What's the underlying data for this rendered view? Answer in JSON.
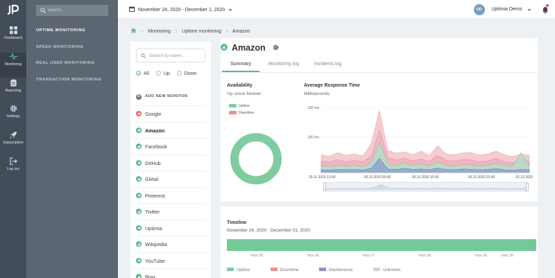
{
  "app": {
    "logo": "JP"
  },
  "nav": [
    {
      "label": "Dashboard",
      "icon": "dashboard-icon"
    },
    {
      "label": "Monitoring",
      "icon": "pulse-icon"
    },
    {
      "label": "Reporting",
      "icon": "clipboard-icon"
    },
    {
      "label": "Settings",
      "icon": "gear-icon"
    },
    {
      "label": "Subscription",
      "icon": "rocket-icon"
    },
    {
      "label": "Log out",
      "icon": "logout-icon"
    }
  ],
  "sidebar": {
    "search_placeholder": "Search...",
    "items": [
      "UPTIME MONITORING",
      "SPEED MONITORING",
      "REAL USER MONITORING",
      "TRANSACTION MONITORING"
    ]
  },
  "topbar": {
    "date_range": "November 24, 2020 - December 1, 2020",
    "user_initials": "UD",
    "user_name": "Uptimia Demo"
  },
  "breadcrumb": [
    "Monitoring",
    "Uptime monitoring",
    "Amazon"
  ],
  "monitor_list": {
    "search_placeholder": "Search by name...",
    "filters": [
      "All",
      "Up",
      "Down"
    ],
    "selected_filter": "All",
    "add_label": "ADD NEW MONITOR",
    "monitors": [
      {
        "name": "Google",
        "status": "down"
      },
      {
        "name": "Amazon",
        "status": "up",
        "selected": true
      },
      {
        "name": "Facebook",
        "status": "up"
      },
      {
        "name": "GitHub",
        "status": "up"
      },
      {
        "name": "GMail",
        "status": "up"
      },
      {
        "name": "Pinterest",
        "status": "up"
      },
      {
        "name": "Twitter",
        "status": "up"
      },
      {
        "name": "Uptimia",
        "status": "up"
      },
      {
        "name": "Wikipedia",
        "status": "up"
      },
      {
        "name": "YouTube",
        "status": "up"
      },
      {
        "name": "Bing",
        "status": "up"
      }
    ]
  },
  "detail": {
    "title": "Amazon",
    "tabs": [
      "Summary",
      "Monitoring log",
      "Incidents log"
    ],
    "active_tab": "Summary",
    "availability": {
      "title": "Availability",
      "subtitle": "Up since forever",
      "legend": [
        "Uptime",
        "Downtime"
      ]
    },
    "response": {
      "title": "Average Response Time",
      "subtitle": "Milliseconds"
    }
  },
  "colors": {
    "uptime": "#7fcca0",
    "downtime": "#ef8e8e",
    "maintenance": "#8f94c1",
    "unknown": "#d0d3d8",
    "accent": "#5cb88a",
    "sidebar": "#434c59"
  },
  "chart_data": [
    {
      "type": "pie",
      "title": "Availability",
      "labels": [
        "Uptime",
        "Downtime"
      ],
      "values": [
        100,
        0
      ]
    },
    {
      "type": "area",
      "title": "Average Response Time",
      "ylabel": "Milliseconds",
      "ylim": [
        0,
        182
      ],
      "yticks": [
        {
          "value": 182,
          "label": "182 ms"
        },
        {
          "value": 100,
          "label": "100 ms"
        }
      ],
      "xticklabels": [
        "29.11.2020 13:00",
        "30.11.2020 00:00",
        "30.11.2020 10:00",
        "30.11.2020 23:00",
        "01.12.2020 13:00"
      ],
      "series": [
        {
          "values": [
            50,
            46,
            56,
            48,
            52,
            47,
            80,
            175,
            62,
            55,
            58,
            50,
            60,
            48,
            75,
            52,
            50,
            55,
            56,
            49,
            52,
            60,
            50,
            45,
            52,
            48
          ]
        },
        {
          "values": [
            32,
            30,
            36,
            30,
            35,
            30,
            45,
            120,
            42,
            35,
            40,
            33,
            38,
            31,
            48,
            34,
            32,
            36,
            35,
            30,
            33,
            40,
            30,
            28,
            35,
            30
          ]
        },
        {
          "values": [
            18,
            17,
            20,
            18,
            20,
            16,
            28,
            85,
            25,
            20,
            28,
            20,
            24,
            19,
            30,
            20,
            18,
            22,
            21,
            18,
            20,
            26,
            20,
            18,
            55,
            20
          ]
        },
        {
          "values": [
            8,
            7,
            9,
            8,
            9,
            7,
            12,
            40,
            10,
            9,
            12,
            9,
            10,
            8,
            13,
            9,
            8,
            10,
            9,
            8,
            9,
            11,
            8,
            7,
            9,
            8
          ]
        }
      ]
    }
  ],
  "timeline": {
    "title": "Timeline",
    "subtitle": "November 24, 2020 - December 01, 2020",
    "ticks": [
      "Nov 25",
      "Nov 26",
      "Nov 27",
      "Nov 28",
      "Nov 29",
      "Nov 30"
    ],
    "legend": [
      "Uptime",
      "Downtime",
      "Maintenance",
      "Unknown"
    ]
  }
}
